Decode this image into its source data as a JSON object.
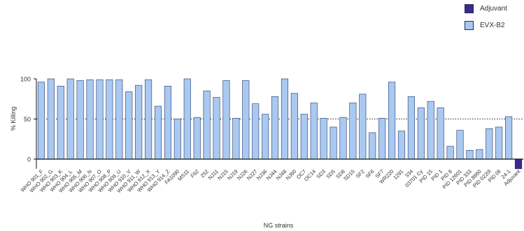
{
  "legend": {
    "items": [
      {
        "label": "Adjuvant",
        "color": "#3a2a8f"
      },
      {
        "label": "EVX-B2",
        "color": "#a9c9f1"
      }
    ]
  },
  "chart_data": {
    "type": "bar",
    "xlabel": "NG strains",
    "ylabel": "% Killing",
    "ylim": [
      -12,
      100
    ],
    "yticks": [
      0,
      50,
      100
    ],
    "reference_line": 50,
    "categories": [
      "WHO 901_F",
      "WHO 902_G",
      "WHO 903_K",
      "WHO 904_L",
      "WHO 905_M",
      "WHO 906_N",
      "WHO 907_O",
      "WHO 908_P",
      "WHO 909_U",
      "WHO 910_V",
      "WHO 911_W",
      "WHO 912_X",
      "WHO 913_Y",
      "WHO 914_Z",
      "FA1090",
      "MS11",
      "F62",
      "252",
      "NJ11",
      "NJ15",
      "NJ19",
      "NJ26",
      "NJ27",
      "NJ36",
      "NJ44",
      "NJ48",
      "NJ60",
      "OC7",
      "OC14",
      "SD3",
      "SD5",
      "SD8",
      "SD15",
      "SF2",
      "SF6",
      "SF7",
      "WR220",
      "1291",
      "334",
      "03701 Cy",
      "PID 15",
      "PID 1",
      "PID 8",
      "PID 12601",
      "PID 333",
      "PID 8860",
      "PID 0220l",
      "PID 0ll",
      "24-1",
      "Adjuvant"
    ],
    "series": [
      {
        "name": "EVX-B2",
        "color": "#a9c9f1",
        "values": [
          96,
          100,
          91,
          100,
          98,
          99,
          99,
          99,
          99,
          84,
          92,
          99,
          66,
          91,
          50,
          100,
          52,
          85,
          77,
          98,
          51,
          98,
          69,
          56,
          78,
          100,
          82,
          56,
          70,
          51,
          40,
          52,
          70,
          81,
          33,
          51,
          96,
          35,
          78,
          64,
          72,
          64,
          16,
          36,
          11,
          12,
          38,
          40,
          53,
          null
        ]
      },
      {
        "name": "Adjuvant",
        "color": "#3a2a8f",
        "values": [
          null,
          null,
          null,
          null,
          null,
          null,
          null,
          null,
          null,
          null,
          null,
          null,
          null,
          null,
          null,
          null,
          null,
          null,
          null,
          null,
          null,
          null,
          null,
          null,
          null,
          null,
          null,
          null,
          null,
          null,
          null,
          null,
          null,
          null,
          null,
          null,
          null,
          null,
          null,
          null,
          null,
          null,
          null,
          null,
          null,
          null,
          null,
          null,
          null,
          -12
        ]
      }
    ]
  }
}
